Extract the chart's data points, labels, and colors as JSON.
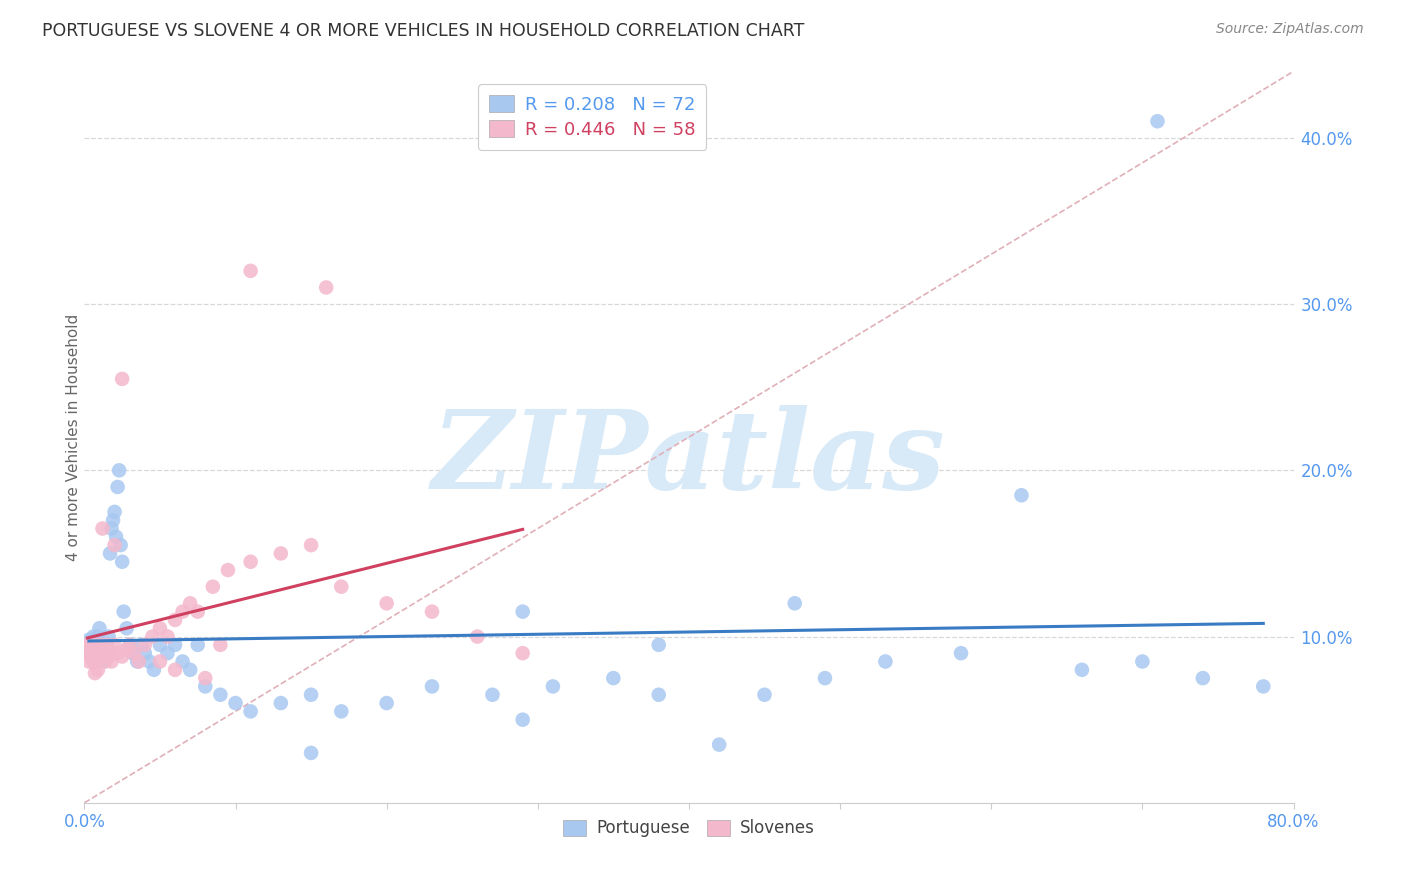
{
  "title": "PORTUGUESE VS SLOVENE 4 OR MORE VEHICLES IN HOUSEHOLD CORRELATION CHART",
  "source": "Source: ZipAtlas.com",
  "ylabel": "4 or more Vehicles in Household",
  "xlim": [
    0.0,
    0.8
  ],
  "ylim": [
    0.0,
    0.44
  ],
  "ytick_positions": [
    0.0,
    0.1,
    0.2,
    0.3,
    0.4
  ],
  "ytick_labels": [
    "",
    "10.0%",
    "20.0%",
    "30.0%",
    "40.0%"
  ],
  "xtick_positions": [
    0.0,
    0.1,
    0.2,
    0.3,
    0.4,
    0.5,
    0.6,
    0.7,
    0.8
  ],
  "blue_color": "#a8c8f0",
  "blue_edge": "#6baed6",
  "blue_line": "#3a7cc4",
  "pink_color": "#f4b8cc",
  "pink_edge": "#e07090",
  "pink_line": "#d04060",
  "diag_color": "#e0b0b8",
  "watermark_color": "#d8eaf8",
  "watermark_text": "ZIPatlas",
  "bg_color": "#ffffff",
  "grid_color": "#d8d8d8",
  "title_color": "#333333",
  "source_color": "#888888",
  "axis_label_color": "#666666",
  "tick_label_color": "#5599ee",
  "legend_text_blue": "R = 0.208   N = 72",
  "legend_text_pink": "R = 0.446   N = 58",
  "legend_bottom_1": "Portuguese",
  "legend_bottom_2": "Slovenes",
  "port_x": [
    0.003,
    0.004,
    0.005,
    0.005,
    0.006,
    0.006,
    0.007,
    0.007,
    0.008,
    0.008,
    0.009,
    0.01,
    0.01,
    0.011,
    0.012,
    0.013,
    0.014,
    0.015,
    0.016,
    0.017,
    0.018,
    0.019,
    0.02,
    0.021,
    0.022,
    0.023,
    0.024,
    0.025,
    0.026,
    0.028,
    0.03,
    0.032,
    0.035,
    0.038,
    0.04,
    0.043,
    0.046,
    0.05,
    0.055,
    0.06,
    0.065,
    0.07,
    0.08,
    0.09,
    0.1,
    0.11,
    0.13,
    0.15,
    0.17,
    0.2,
    0.23,
    0.27,
    0.31,
    0.35,
    0.38,
    0.42,
    0.45,
    0.49,
    0.53,
    0.58,
    0.62,
    0.66,
    0.7,
    0.74,
    0.78,
    0.15,
    0.29,
    0.38,
    0.47,
    0.075,
    0.29,
    0.71
  ],
  "port_y": [
    0.098,
    0.092,
    0.088,
    0.095,
    0.085,
    0.1,
    0.095,
    0.09,
    0.088,
    0.096,
    0.1,
    0.095,
    0.105,
    0.092,
    0.085,
    0.09,
    0.088,
    0.095,
    0.1,
    0.15,
    0.165,
    0.17,
    0.175,
    0.16,
    0.19,
    0.2,
    0.155,
    0.145,
    0.115,
    0.105,
    0.095,
    0.09,
    0.085,
    0.095,
    0.09,
    0.085,
    0.08,
    0.095,
    0.09,
    0.095,
    0.085,
    0.08,
    0.07,
    0.065,
    0.06,
    0.055,
    0.06,
    0.065,
    0.055,
    0.06,
    0.07,
    0.065,
    0.07,
    0.075,
    0.065,
    0.035,
    0.065,
    0.075,
    0.085,
    0.09,
    0.185,
    0.08,
    0.085,
    0.075,
    0.07,
    0.03,
    0.115,
    0.095,
    0.12,
    0.095,
    0.05,
    0.41
  ],
  "slov_x": [
    0.002,
    0.003,
    0.003,
    0.004,
    0.004,
    0.005,
    0.005,
    0.006,
    0.006,
    0.007,
    0.007,
    0.008,
    0.008,
    0.009,
    0.009,
    0.01,
    0.011,
    0.012,
    0.013,
    0.014,
    0.015,
    0.016,
    0.017,
    0.018,
    0.02,
    0.022,
    0.025,
    0.028,
    0.03,
    0.033,
    0.036,
    0.04,
    0.045,
    0.05,
    0.055,
    0.06,
    0.065,
    0.07,
    0.075,
    0.085,
    0.095,
    0.11,
    0.13,
    0.15,
    0.17,
    0.2,
    0.23,
    0.26,
    0.29,
    0.05,
    0.09,
    0.02,
    0.012,
    0.025,
    0.11,
    0.16,
    0.06,
    0.08
  ],
  "slov_y": [
    0.095,
    0.09,
    0.085,
    0.088,
    0.095,
    0.092,
    0.088,
    0.085,
    0.095,
    0.09,
    0.078,
    0.092,
    0.085,
    0.095,
    0.08,
    0.088,
    0.095,
    0.088,
    0.092,
    0.085,
    0.095,
    0.088,
    0.09,
    0.085,
    0.095,
    0.09,
    0.088,
    0.092,
    0.095,
    0.09,
    0.085,
    0.095,
    0.1,
    0.105,
    0.1,
    0.11,
    0.115,
    0.12,
    0.115,
    0.13,
    0.14,
    0.145,
    0.15,
    0.155,
    0.13,
    0.12,
    0.115,
    0.1,
    0.09,
    0.085,
    0.095,
    0.155,
    0.165,
    0.255,
    0.32,
    0.31,
    0.08,
    0.075
  ]
}
